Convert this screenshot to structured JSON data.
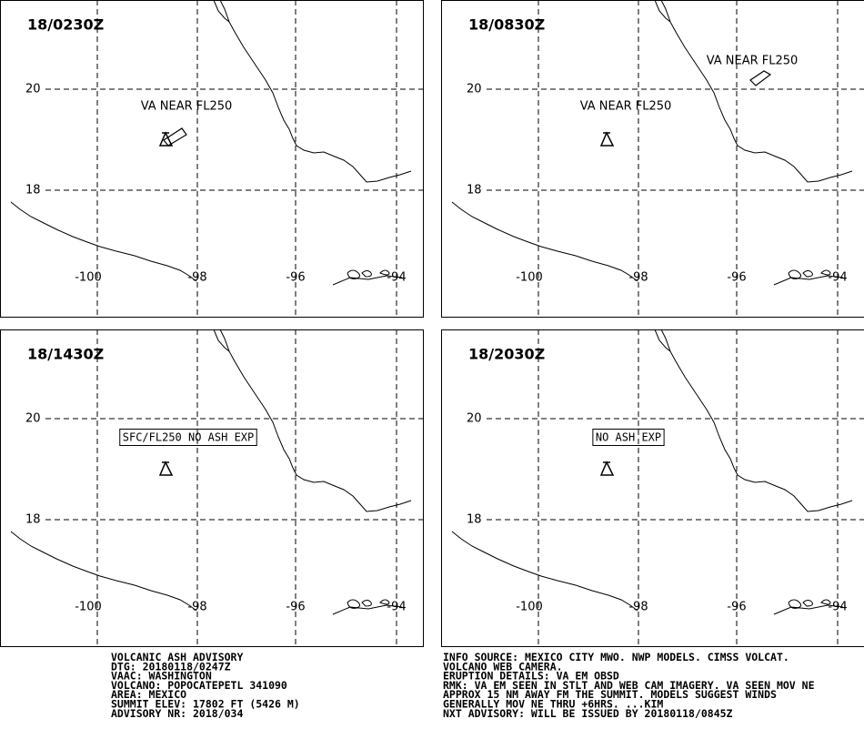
{
  "map": {
    "lat_labels": [
      "20",
      "18"
    ],
    "lon_labels": [
      "-100",
      "-98",
      "-96",
      "-94"
    ]
  },
  "panels": [
    {
      "time": "18/0230Z",
      "annotations": [
        "VA NEAR FL250"
      ]
    },
    {
      "time": "18/0830Z",
      "annotations": [
        "VA NEAR FL250",
        "VA NEAR FL250"
      ]
    },
    {
      "time": "18/1430Z",
      "annotations": [
        "SFC/FL250 NO ASH EXP"
      ]
    },
    {
      "time": "18/2030Z",
      "annotations": [
        "NO ASH EXP"
      ]
    }
  ],
  "footer": {
    "left": [
      "VOLCANIC ASH ADVISORY",
      "DTG: 20180118/0247Z",
      "VAAC: WASHINGTON",
      "VOLCANO: POPOCATEPETL 341090",
      "AREA: MEXICO",
      "SUMMIT ELEV: 17802 FT (5426 M)",
      "ADVISORY NR: 2018/034"
    ],
    "right": [
      "INFO SOURCE: MEXICO CITY MWO. NWP MODELS. CIMSS VOLCAT.",
      "VOLCANO WEB CAMERA.",
      "ERUPTION DETAILS: VA EM OBSD",
      "RMK: VA EM SEEN IN STLT AND WEB CAM IMAGERY. VA SEEN MOV NE",
      "APPROX 15 NM AWAY FM THE SUMMIT. MODELS SUGGEST WINDS",
      "GENERALLY MOV NE THRU +6HRS. ...KIM",
      "NXT ADVISORY: WILL BE ISSUED BY 20180118/0845Z"
    ]
  }
}
